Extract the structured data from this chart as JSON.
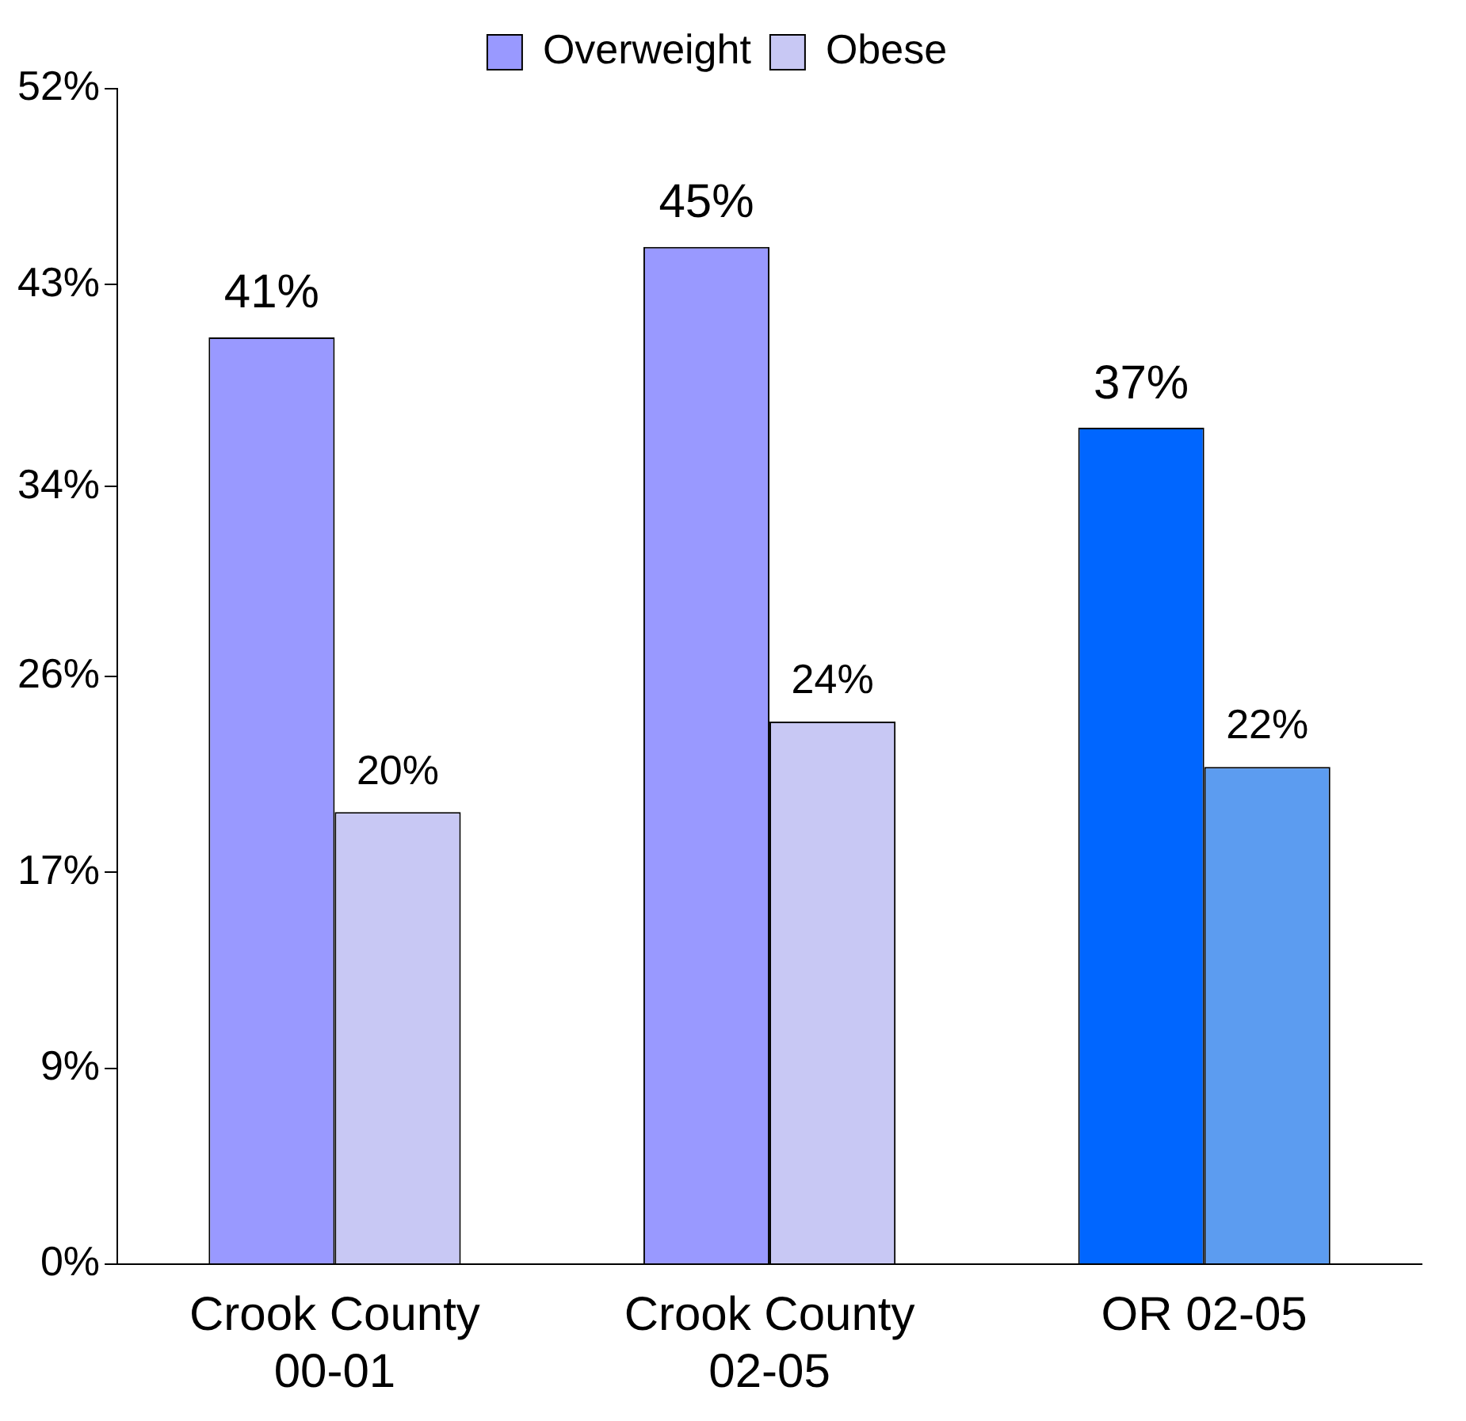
{
  "chart_data": {
    "type": "bar",
    "categories": [
      "Crook County\n00-01",
      "Crook County\n02-05",
      "OR 02-05"
    ],
    "series": [
      {
        "name": "Overweight",
        "color": "#9999ff",
        "colors": [
          "#9999ff",
          "#9999ff",
          "#0066ff"
        ],
        "values": [
          41,
          45,
          37
        ],
        "value_labels": [
          "41%",
          "45%",
          "37%"
        ]
      },
      {
        "name": "Obese",
        "color": "#c8c8f4",
        "colors": [
          "#c8c8f4",
          "#c8c8f4",
          "#5c9cf0"
        ],
        "values": [
          20,
          24,
          22
        ],
        "value_labels": [
          "20%",
          "24%",
          "22%"
        ]
      }
    ],
    "ylim": [
      0,
      52
    ],
    "yticks": [
      {
        "value": 0,
        "label": "0%"
      },
      {
        "value": 8.667,
        "label": "9%"
      },
      {
        "value": 17.333,
        "label": "17%"
      },
      {
        "value": 26,
        "label": "26%"
      },
      {
        "value": 34.4,
        "label": "34%"
      },
      {
        "value": 43.333,
        "label": "43%"
      },
      {
        "value": 52,
        "label": "52%"
      }
    ],
    "grid": false,
    "legend": "top"
  }
}
